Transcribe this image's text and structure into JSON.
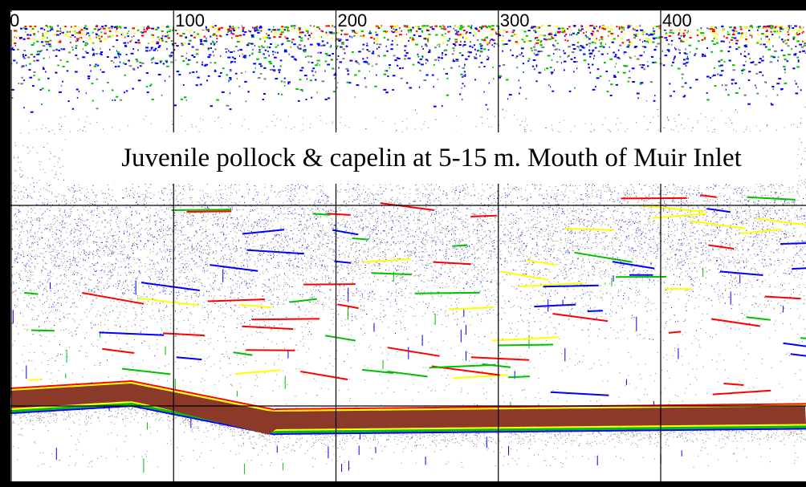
{
  "chart_data": {
    "type": "heatmap",
    "title": "Juvenile pollock & capelin at 5-15 m. Mouth of Muir Inlet",
    "x_ticks": [
      0,
      100,
      200,
      300,
      400
    ],
    "xlim": [
      0,
      490
    ],
    "grid": true,
    "colors": {
      "seabed": "#8b3a2a",
      "strong": "#ff0000",
      "mid_high": "#ffff00",
      "mid": "#00c000",
      "low": "#0000ff",
      "weak": "#808080"
    }
  }
}
